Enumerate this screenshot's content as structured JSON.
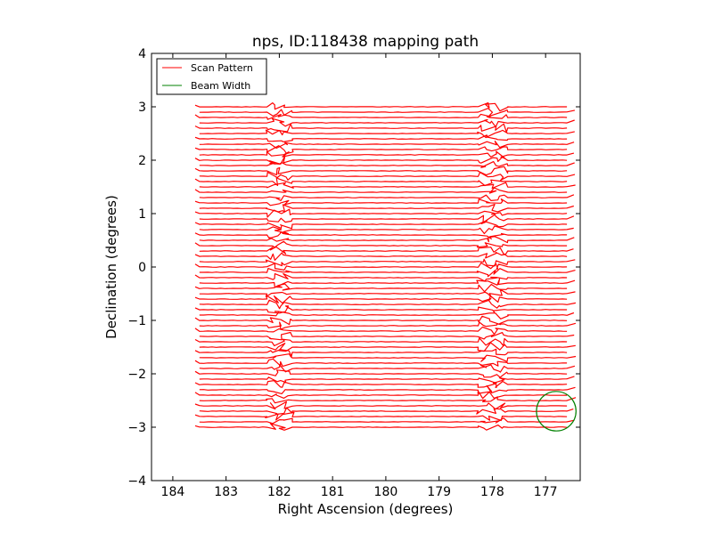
{
  "chart_data": {
    "type": "line",
    "title": "nps, ID:118438 mapping path",
    "xlabel": "Right Ascension (degrees)",
    "ylabel": "Declination (degrees)",
    "xlim": [
      184.4,
      176.35
    ],
    "ylim": [
      -4,
      4
    ],
    "xticks": [
      "184",
      "183",
      "182",
      "181",
      "180",
      "179",
      "178",
      "177"
    ],
    "xtick_values": [
      184,
      183,
      182,
      181,
      180,
      179,
      178,
      177
    ],
    "yticks": [
      "4",
      "3",
      "2",
      "1",
      "0",
      "−1",
      "−2",
      "−3",
      "−4"
    ],
    "ytick_values": [
      4,
      3,
      2,
      1,
      0,
      -1,
      -2,
      -3,
      -4
    ],
    "grid": false,
    "legend_position": "top-left",
    "series": [
      {
        "name": "Scan Pattern",
        "color": "#ff0000",
        "kind": "raster_scan",
        "ra_start": 183.5,
        "ra_end": 176.6,
        "dec_start": -3.0,
        "dec_end": 3.0,
        "row_spacing": 0.1,
        "jitter_columns_ra": [
          182.0,
          178.0
        ]
      },
      {
        "name": "Beam Width",
        "color": "#008000",
        "kind": "circle",
        "center": [
          176.8,
          -2.7
        ],
        "radius_deg": 0.37
      }
    ]
  }
}
